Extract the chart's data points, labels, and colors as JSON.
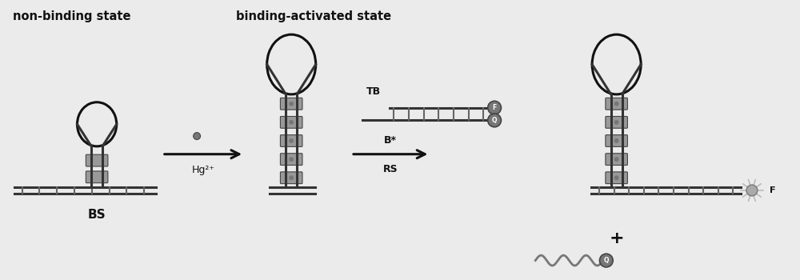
{
  "bg_color": "#ebebeb",
  "title_non_binding": "non-binding state",
  "title_binding_activated": "binding-activated state",
  "label_BS": "BS",
  "label_TB": "TB",
  "label_Bstar": "B*",
  "label_RS": "RS",
  "label_Hg2plus": "Hg²⁺",
  "label_F": "F",
  "label_plus": "+",
  "label_Q": "Q",
  "col_black": "#111111",
  "col_dark": "#333333",
  "col_mid": "#777777",
  "col_light": "#aaaaaa",
  "col_dot_fill": "#999999",
  "col_dot_edge": "#444444",
  "col_rung": "#666666",
  "col_arrow": "#111111",
  "col_text": "#111111",
  "col_flare": "#bbbbbb"
}
